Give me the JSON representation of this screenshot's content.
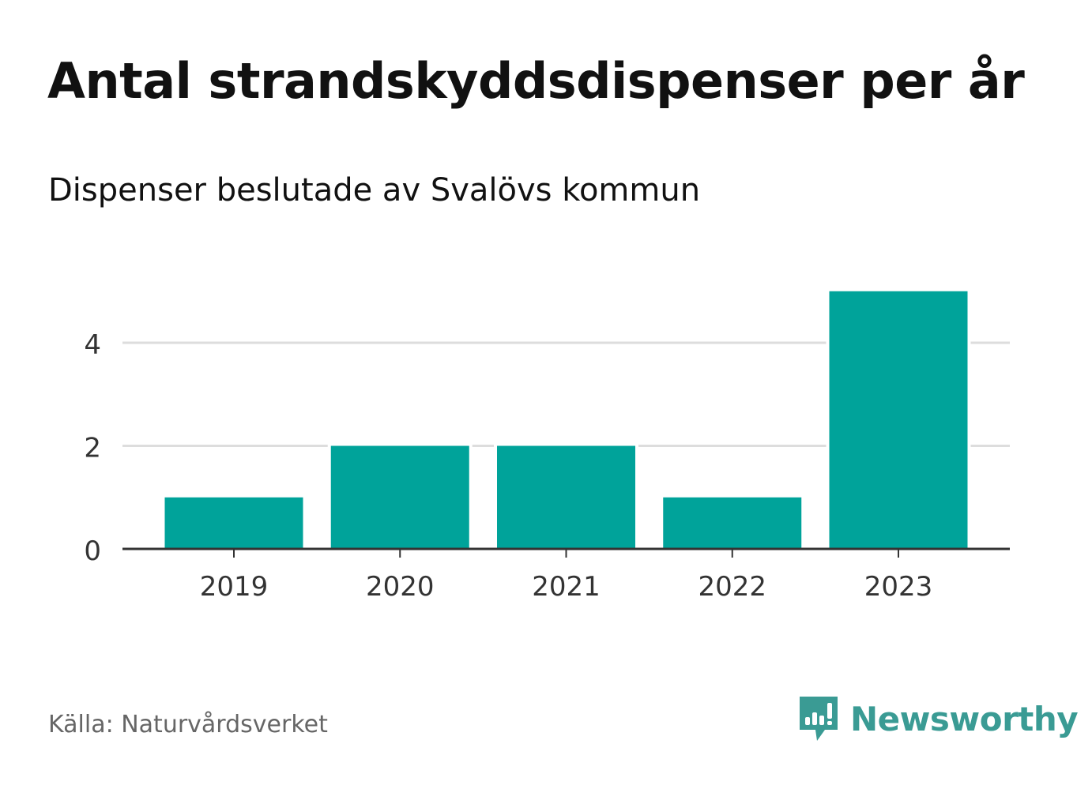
{
  "chart_data": {
    "type": "bar",
    "title": "Antal strandskyddsdispenser per år",
    "subtitle": "Dispenser beslutade av Svalövs kommun",
    "categories": [
      "2019",
      "2020",
      "2021",
      "2022",
      "2023"
    ],
    "values": [
      1,
      2,
      2,
      1,
      5
    ],
    "xlabel": "",
    "ylabel": "",
    "ylim": [
      0,
      5
    ],
    "yticks": [
      "0",
      "2",
      "4"
    ],
    "grid": true,
    "bar_color": "#00a39a",
    "source": "Källa: Naturvårdsverket"
  },
  "brand": {
    "name": "Newsworthy",
    "color": "#3a9b94"
  }
}
